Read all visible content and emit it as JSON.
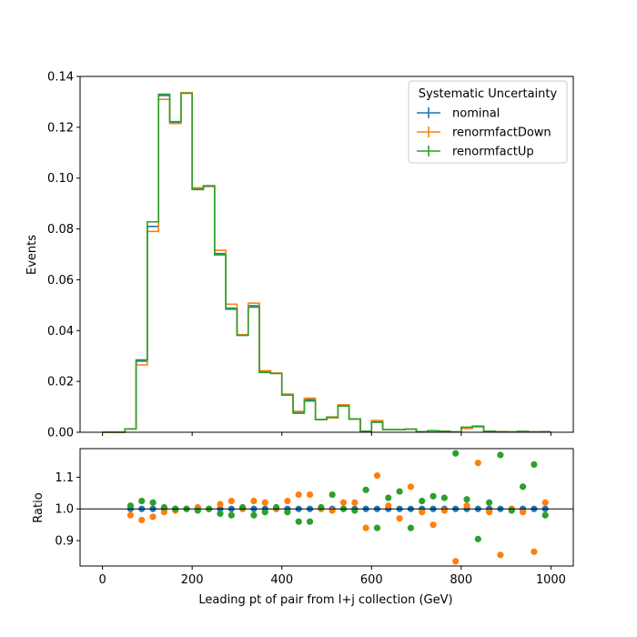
{
  "chart_data": [
    {
      "type": "line",
      "panel": "main",
      "drawstyle": "steps",
      "title": "",
      "xlabel": "",
      "ylabel": "Events",
      "xlim": [
        -50,
        1050
      ],
      "ylim": [
        0,
        0.14
      ],
      "grid": false,
      "yticks": [
        0.0,
        0.02,
        0.04,
        0.06,
        0.08,
        0.1,
        0.12,
        0.14
      ],
      "ytick_labels": [
        "0.00",
        "0.02",
        "0.04",
        "0.06",
        "0.08",
        "0.10",
        "0.12",
        "0.14"
      ],
      "xticks": [
        0,
        200,
        400,
        600,
        800,
        1000
      ],
      "bin_edges": [
        0,
        25,
        50,
        75,
        100,
        125,
        150,
        175,
        200,
        225,
        250,
        275,
        300,
        325,
        350,
        375,
        400,
        425,
        450,
        475,
        500,
        525,
        550,
        575,
        600,
        625,
        650,
        675,
        700,
        725,
        750,
        775,
        800,
        825,
        850,
        875,
        900,
        925,
        950,
        975,
        1000
      ],
      "legend": {
        "title": "Systematic Uncertainty",
        "placement": "upper right"
      },
      "series": [
        {
          "name": "nominal",
          "color": "#1f77b4",
          "values": [
            0.0,
            0.0,
            0.0013,
            0.028,
            0.081,
            0.1325,
            0.122,
            0.1335,
            0.0958,
            0.0967,
            0.0703,
            0.0488,
            0.0383,
            0.0498,
            0.0237,
            0.0232,
            0.0148,
            0.0078,
            0.0128,
            0.005,
            0.0057,
            0.0105,
            0.0052,
            0.0004,
            0.0042,
            0.001,
            0.001,
            0.0012,
            0.0002,
            0.0006,
            0.0004,
            0.0001,
            0.0018,
            0.0022,
            0.0004,
            0.0002,
            0.0001,
            0.0003,
            0.0001,
            0.0002
          ]
        },
        {
          "name": "renormfactDown",
          "color": "#ff7f0e",
          "values": [
            0.0,
            0.0,
            0.0013,
            0.0265,
            0.079,
            0.131,
            0.1215,
            0.1336,
            0.0962,
            0.0968,
            0.0716,
            0.0504,
            0.0384,
            0.0508,
            0.0242,
            0.0233,
            0.015,
            0.0082,
            0.0134,
            0.005,
            0.0056,
            0.0108,
            0.0052,
            0.0004,
            0.0046,
            0.001,
            0.001,
            0.0013,
            0.0002,
            0.0006,
            0.0004,
            0.0001,
            0.0015,
            0.0025,
            0.0004,
            0.0002,
            0.0001,
            0.0003,
            0.0001,
            0.0002
          ]
        },
        {
          "name": "renormfactUp",
          "color": "#2ca02c",
          "values": [
            0.0,
            0.0,
            0.0013,
            0.0285,
            0.0828,
            0.133,
            0.1222,
            0.1334,
            0.0955,
            0.097,
            0.0698,
            0.0484,
            0.0381,
            0.0492,
            0.0235,
            0.0231,
            0.0146,
            0.0075,
            0.0123,
            0.005,
            0.006,
            0.0103,
            0.0052,
            0.0004,
            0.0039,
            0.001,
            0.001,
            0.0012,
            0.0002,
            0.0006,
            0.0004,
            0.0001,
            0.002,
            0.0022,
            0.0004,
            0.0002,
            0.0001,
            0.0003,
            0.0001,
            0.0002
          ]
        }
      ]
    },
    {
      "type": "scatter",
      "panel": "ratio",
      "title": "",
      "xlabel": "Leading pt of pair from l+j collection (GeV)",
      "ylabel": "Ratio",
      "xlim": [
        -50,
        1050
      ],
      "ylim": [
        0.82,
        1.19
      ],
      "grid": false,
      "reference_line": 1.0,
      "yticks": [
        0.9,
        1.0,
        1.1
      ],
      "ytick_labels": [
        "0.9",
        "1.0",
        "1.1"
      ],
      "xticks": [
        0,
        200,
        400,
        600,
        800,
        1000
      ],
      "xtick_labels": [
        "0",
        "200",
        "400",
        "600",
        "800",
        "1000"
      ],
      "x": [
        62.5,
        87.5,
        112.5,
        137.5,
        162.5,
        187.5,
        212.5,
        237.5,
        262.5,
        287.5,
        312.5,
        337.5,
        362.5,
        387.5,
        412.5,
        437.5,
        462.5,
        487.5,
        512.5,
        537.5,
        562.5,
        587.5,
        612.5,
        637.5,
        662.5,
        687.5,
        712.5,
        737.5,
        762.5,
        787.5,
        812.5,
        837.5,
        862.5,
        887.5,
        912.5,
        937.5,
        962.5,
        987.5
      ],
      "series": [
        {
          "name": "nominal",
          "color": "#1f77b4",
          "values": [
            1.0,
            1.0,
            1.0,
            1.0,
            1.0,
            1.0,
            1.0,
            1.0,
            1.0,
            1.0,
            1.0,
            1.0,
            1.0,
            1.0,
            1.0,
            1.0,
            1.0,
            1.0,
            1.0,
            1.0,
            1.0,
            1.0,
            1.0,
            1.0,
            1.0,
            1.0,
            1.0,
            1.0,
            1.0,
            1.0,
            1.0,
            1.0,
            1.0,
            1.0,
            1.0,
            1.0,
            1.0,
            1.0
          ]
        },
        {
          "name": "renormfactDown",
          "color": "#ff7f0e",
          "values": [
            0.98,
            0.965,
            0.975,
            0.99,
            0.995,
            1.0,
            1.005,
            1.0,
            1.015,
            1.025,
            1.0,
            1.025,
            1.02,
            1.0,
            1.025,
            1.045,
            1.045,
            1.0,
            0.995,
            1.02,
            1.02,
            0.94,
            1.105,
            1.01,
            0.97,
            1.07,
            0.99,
            0.95,
            0.995,
            0.835,
            1.01,
            1.145,
            0.99,
            0.855,
            1.0,
            0.99,
            0.865,
            1.02
          ]
        },
        {
          "name": "renormfactUp",
          "color": "#2ca02c",
          "values": [
            1.01,
            1.025,
            1.02,
            1.005,
            1.0,
            1.0,
            0.995,
            1.0,
            0.985,
            0.98,
            1.005,
            0.98,
            0.99,
            1.005,
            0.99,
            0.96,
            0.96,
            1.005,
            1.045,
            1.0,
            0.995,
            1.06,
            0.94,
            1.035,
            1.055,
            0.94,
            1.025,
            1.04,
            1.035,
            1.175,
            1.03,
            0.905,
            1.02,
            1.17,
            0.995,
            1.07,
            1.14,
            0.98
          ]
        }
      ]
    }
  ]
}
